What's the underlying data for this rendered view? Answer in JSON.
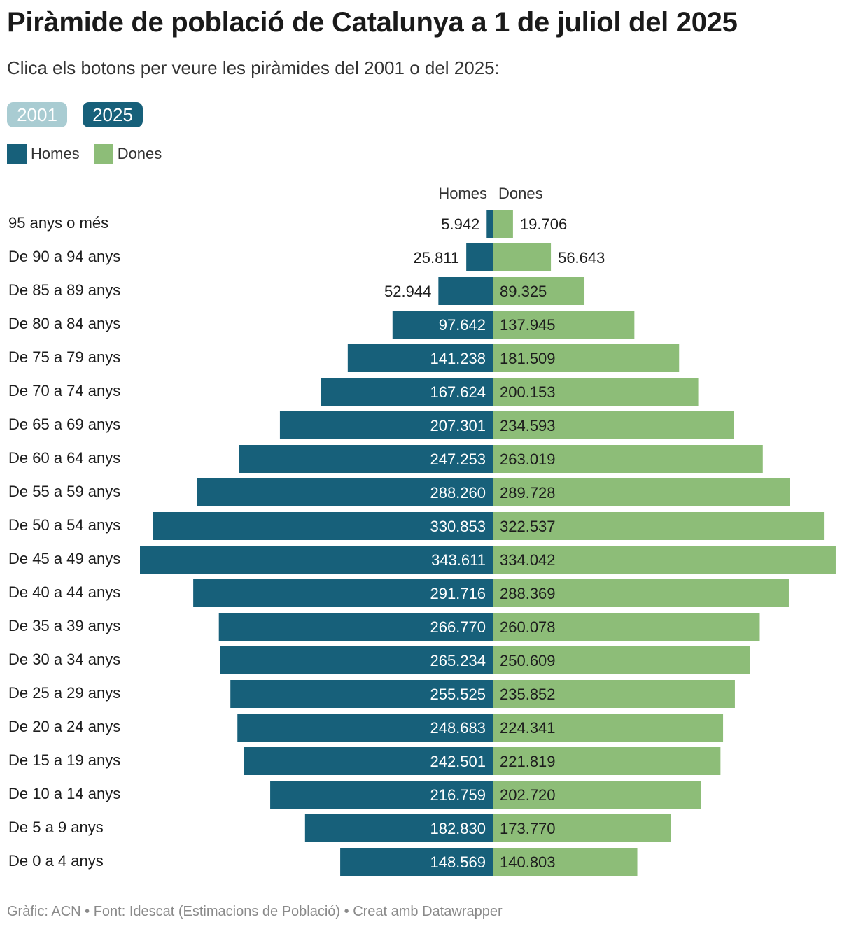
{
  "header": {
    "title": "Piràmide de població de Catalunya a 1 de juliol del 2025",
    "subtitle": "Clica els botons per veure les piràmides del 2001 o del 2025:"
  },
  "buttons": {
    "b2001": "2001",
    "b2025": "2025",
    "selected": "2025"
  },
  "legend": {
    "homes": "Homes",
    "dones": "Dones"
  },
  "colors": {
    "homes": "#17607a",
    "dones": "#8dbd78",
    "button_inactive": "#a9ccd2"
  },
  "footer": "Gràfic: ACN • Font: Idescat (Estimacions de Població) • Creat amb Datawrapper",
  "chart_data": {
    "type": "bar",
    "orientation": "horizontal-pyramid",
    "column_headers": {
      "left": "Homes",
      "right": "Dones"
    },
    "categories": [
      "95 anys o més",
      "De 90 a 94 anys",
      "De 85 a 89 anys",
      "De 80 a 84 anys",
      "De 75 a 79 anys",
      "De 70 a 74 anys",
      "De 65 a 69 anys",
      "De 60 a 64 anys",
      "De 55 a 59 anys",
      "De 50 a 54 anys",
      "De 45 a 49 anys",
      "De 40 a 44 anys",
      "De 35 a 39 anys",
      "De 30 a 34 anys",
      "De 25 a 29 anys",
      "De 20 a 24 anys",
      "De 15 a 19 anys",
      "De 10 a 14 anys",
      "De 5 a 9 anys",
      "De 0 a 4 anys"
    ],
    "series": [
      {
        "name": "Homes",
        "values": [
          5942,
          25811,
          52944,
          97642,
          141238,
          167624,
          207301,
          247253,
          288260,
          330853,
          343611,
          291716,
          266770,
          265234,
          255525,
          248683,
          242501,
          216759,
          182830,
          148569
        ],
        "labels": [
          "5.942",
          "25.811",
          "52.944",
          "97.642",
          "141.238",
          "167.624",
          "207.301",
          "247.253",
          "288.260",
          "330.853",
          "343.611",
          "291.716",
          "266.770",
          "265.234",
          "255.525",
          "248.683",
          "242.501",
          "216.759",
          "182.830",
          "148.569"
        ]
      },
      {
        "name": "Dones",
        "values": [
          19706,
          56643,
          89325,
          137945,
          181509,
          200153,
          234593,
          263019,
          289728,
          322537,
          334042,
          288369,
          260078,
          250609,
          235852,
          224341,
          221819,
          202720,
          173770,
          140803
        ],
        "labels": [
          "19.706",
          "56.643",
          "89.325",
          "137.945",
          "181.509",
          "200.153",
          "234.593",
          "263.019",
          "289.728",
          "322.537",
          "334.042",
          "288.369",
          "260.078",
          "250.609",
          "235.852",
          "224.341",
          "221.819",
          "202.720",
          "173.770",
          "140.803"
        ]
      }
    ],
    "legend_position": "top-left",
    "grid": false
  }
}
